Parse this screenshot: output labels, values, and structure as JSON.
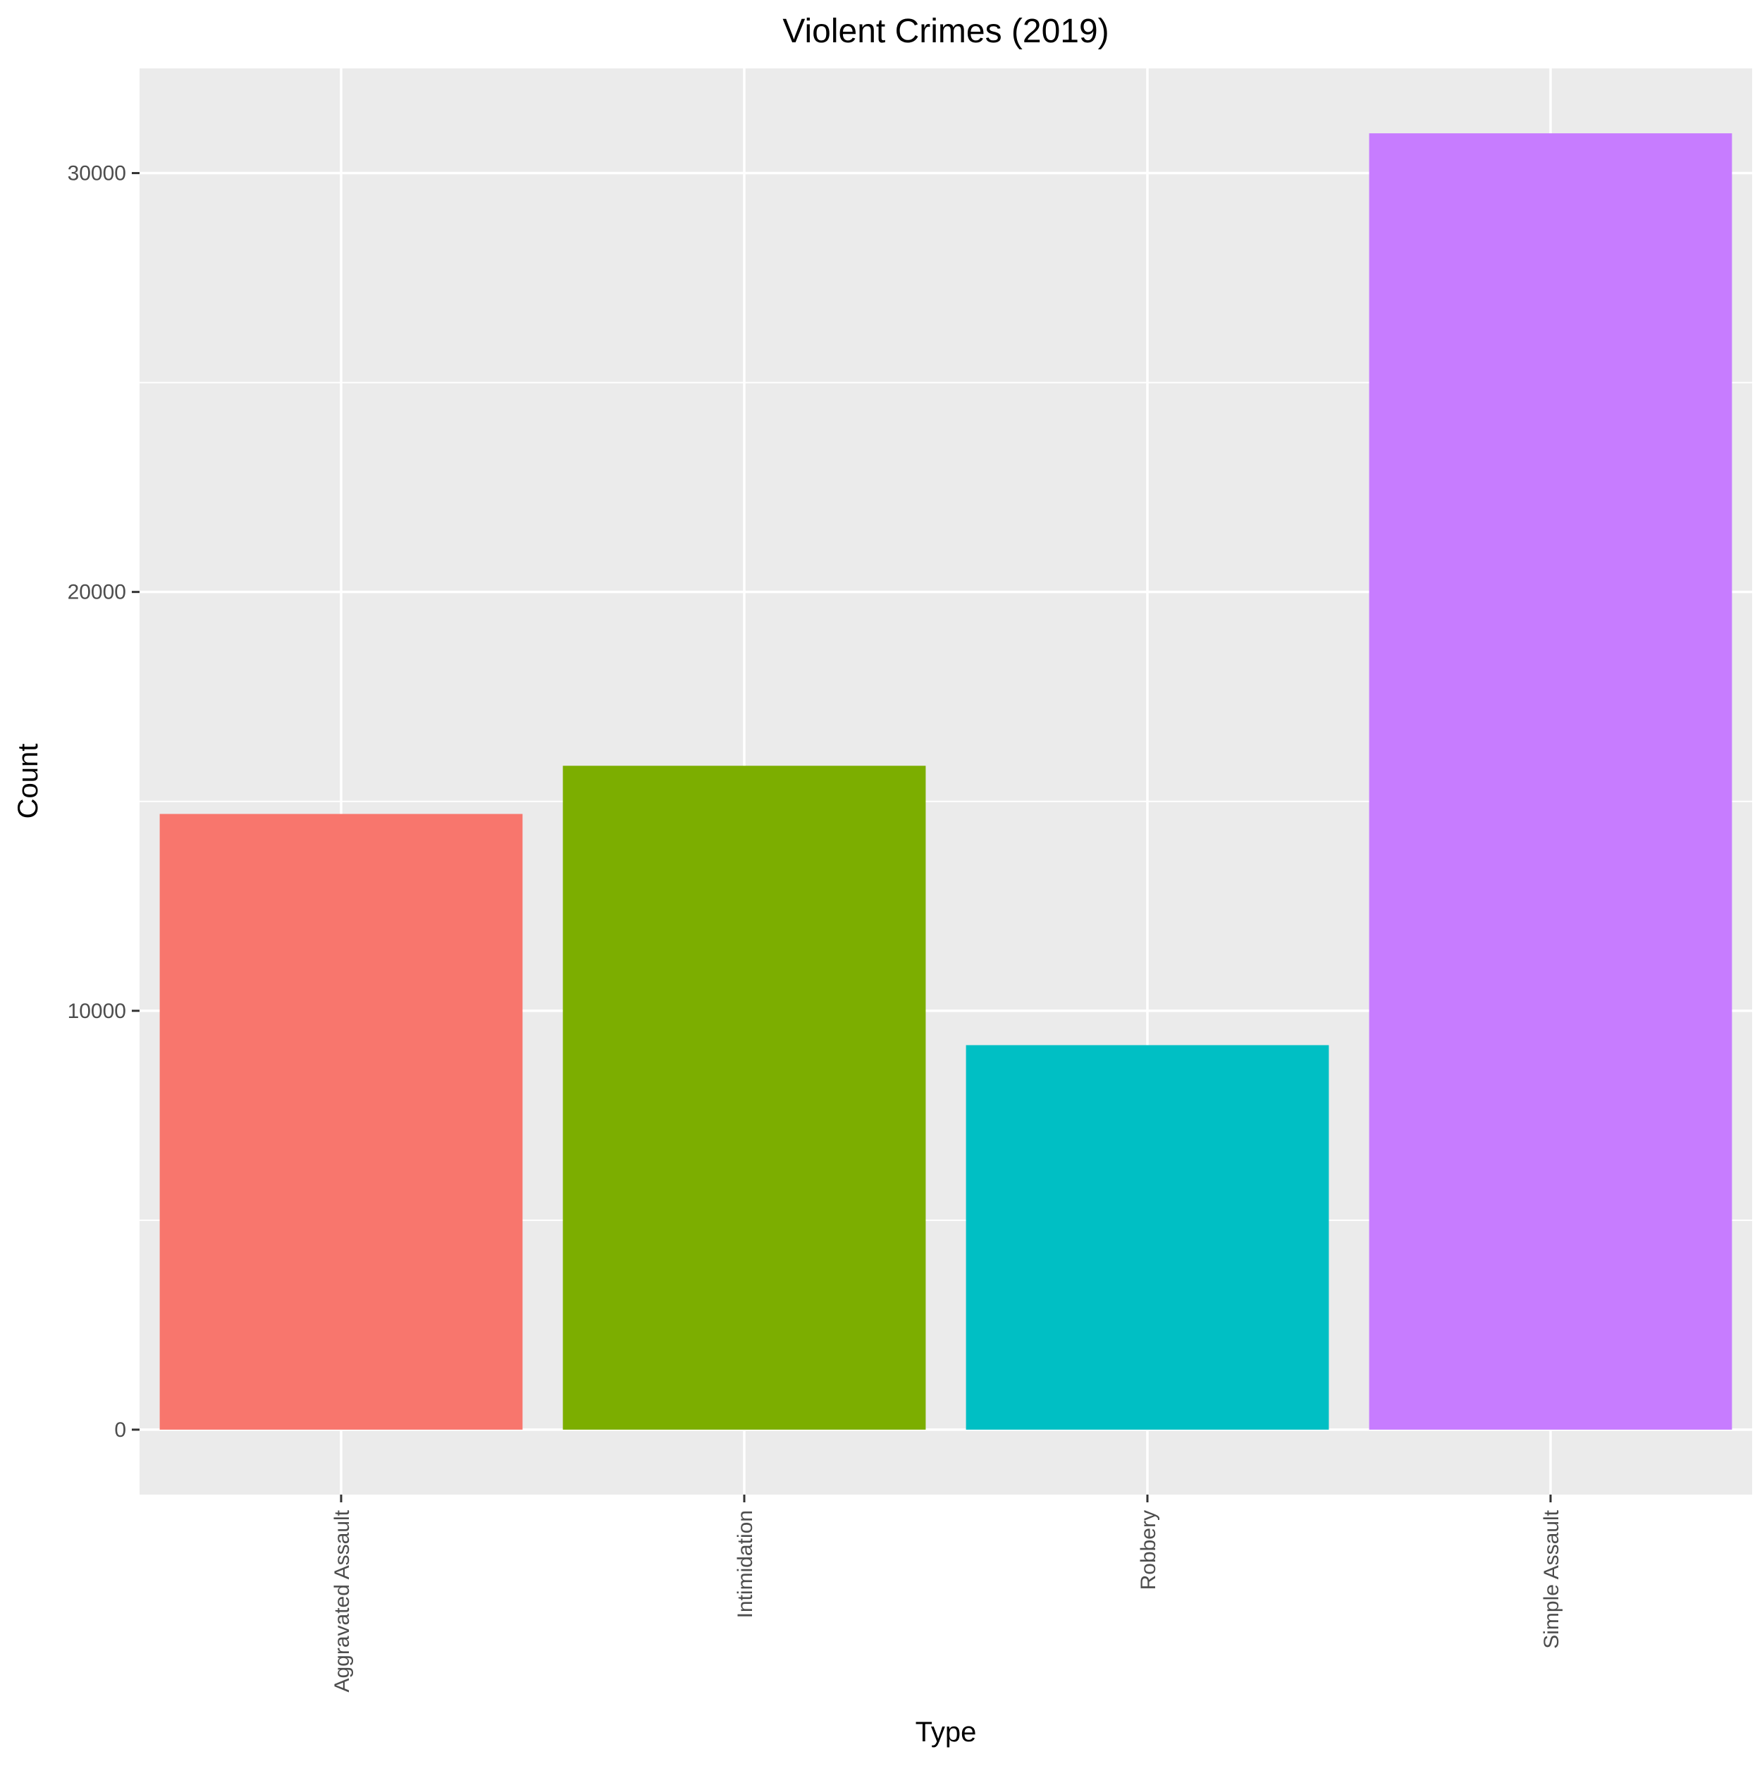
{
  "chart_data": {
    "type": "bar",
    "title": "Violent Crimes (2019)",
    "xlabel": "Type",
    "ylabel": "Count",
    "categories": [
      "Aggravated Assault",
      "Intimidation",
      "Robbery",
      "Simple Assault"
    ],
    "values": [
      14700,
      15850,
      9180,
      30950
    ],
    "colors": [
      "#F8766D",
      "#7CAE00",
      "#00BFC4",
      "#C77CFF"
    ],
    "ylim": [
      -1550,
      32500
    ],
    "yticks": [
      0,
      10000,
      20000,
      30000
    ],
    "ytick_labels": [
      "0",
      "10000",
      "20000",
      "30000"
    ],
    "grid": true,
    "legend": "none",
    "panel_color": "#EBEBEB",
    "grid_color": "#FFFFFF",
    "tick_color": "#333333"
  }
}
